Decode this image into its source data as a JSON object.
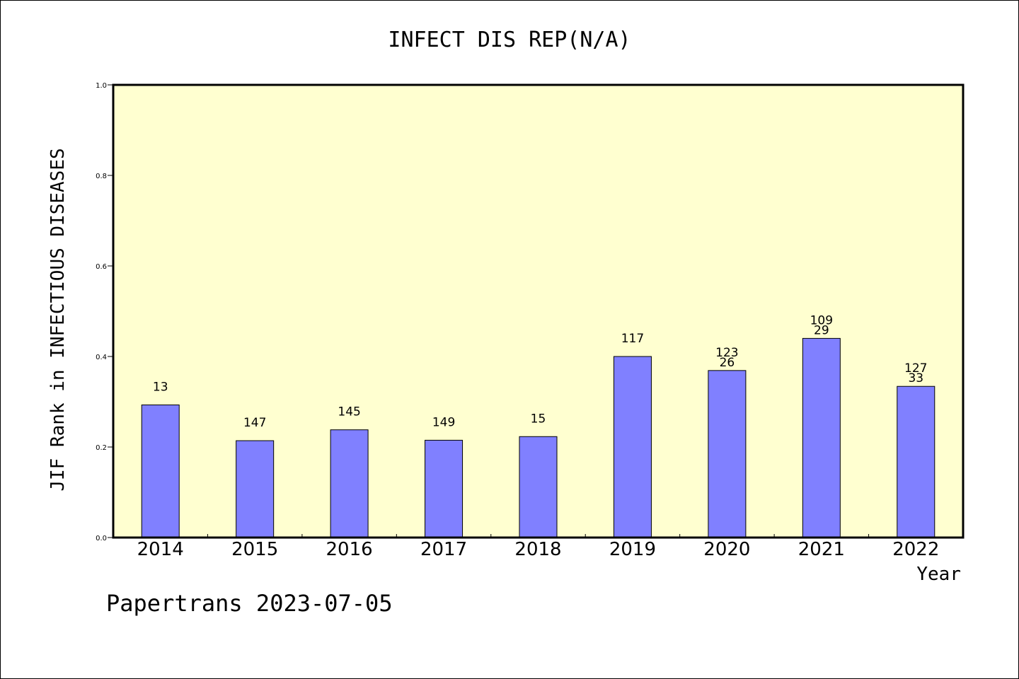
{
  "chart_data": {
    "type": "bar",
    "title": "INFECT DIS REP(N/A)",
    "xlabel": "Year",
    "ylabel": "JIF Rank in INFECTIOUS DISEASES",
    "ylim": [
      0,
      1.0
    ],
    "yticks": [
      "0.0",
      "0.2",
      "0.4",
      "0.6",
      "0.8",
      "1.0"
    ],
    "grid": false,
    "categories": [
      "2014",
      "2015",
      "2016",
      "2017",
      "2018",
      "2019",
      "2020",
      "2021",
      "2022"
    ],
    "values": [
      0.293,
      0.214,
      0.238,
      0.215,
      0.223,
      0.4,
      0.369,
      0.44,
      0.334
    ],
    "bar_labels": [
      [
        "13"
      ],
      [
        "147"
      ],
      [
        "145"
      ],
      [
        "149"
      ],
      [
        "15"
      ],
      [
        "117"
      ],
      [
        "123",
        "26"
      ],
      [
        "109",
        "29"
      ],
      [
        "127",
        "33"
      ]
    ],
    "colors": {
      "bar": "#8080ff",
      "plot_background": "#ffffd0",
      "axis": "#000000"
    }
  },
  "footer": {
    "watermark": "Papertrans 2023-07-05"
  }
}
